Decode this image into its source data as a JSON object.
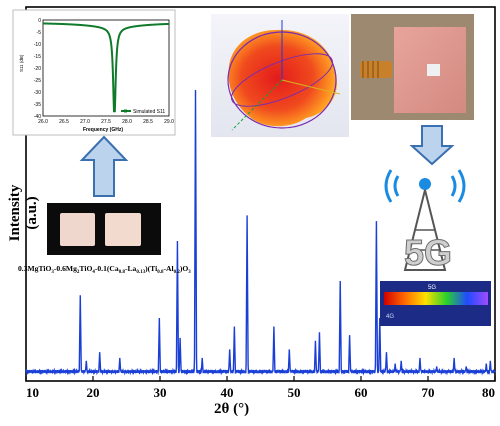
{
  "chart_data": {
    "type": "line",
    "xlabel": "2θ (°)",
    "ylabel": "Intensity (a.u.)",
    "xlim": [
      10,
      80
    ],
    "xticks": [
      "10",
      "20",
      "30",
      "40",
      "50",
      "60",
      "70",
      "80"
    ],
    "series": [
      {
        "color": "#1a3fd6",
        "baseline": 1.2,
        "peaks": [
          {
            "x": 18.1,
            "y": 28
          },
          {
            "x": 19.0,
            "y": 5
          },
          {
            "x": 21.0,
            "y": 8
          },
          {
            "x": 24.0,
            "y": 6
          },
          {
            "x": 29.9,
            "y": 20
          },
          {
            "x": 32.6,
            "y": 47
          },
          {
            "x": 33.0,
            "y": 13
          },
          {
            "x": 35.3,
            "y": 100
          },
          {
            "x": 36.3,
            "y": 6
          },
          {
            "x": 40.4,
            "y": 9
          },
          {
            "x": 41.1,
            "y": 17
          },
          {
            "x": 43.0,
            "y": 56
          },
          {
            "x": 47.0,
            "y": 17
          },
          {
            "x": 49.3,
            "y": 9
          },
          {
            "x": 53.2,
            "y": 12
          },
          {
            "x": 53.8,
            "y": 15
          },
          {
            "x": 56.9,
            "y": 33
          },
          {
            "x": 58.3,
            "y": 14
          },
          {
            "x": 62.3,
            "y": 54
          },
          {
            "x": 62.8,
            "y": 20
          },
          {
            "x": 63.8,
            "y": 8
          },
          {
            "x": 65.1,
            "y": 4
          },
          {
            "x": 66.0,
            "y": 5
          },
          {
            "x": 68.8,
            "y": 6
          },
          {
            "x": 71.3,
            "y": 3
          },
          {
            "x": 73.9,
            "y": 6
          },
          {
            "x": 75.7,
            "y": 3
          },
          {
            "x": 78.7,
            "y": 4
          },
          {
            "x": 79.3,
            "y": 5
          }
        ]
      }
    ]
  },
  "insets": {
    "s11": {
      "ylabel": "S11 (dB)",
      "xlabel": "Frequency (GHz)",
      "xticks": [
        "26.0",
        "26.5",
        "27.0",
        "27.5",
        "28.0",
        "28.5",
        "29.0"
      ],
      "yticks": [
        "0",
        "-5",
        "-10",
        "-15",
        "-20",
        "-25",
        "-30",
        "-35",
        "-40"
      ],
      "legend": "Simulated S11",
      "color": "#0f7a2a",
      "xlim": [
        26.0,
        29.0
      ],
      "ylim": [
        -40,
        0
      ],
      "resonance_ghz": 27.7,
      "min_db": -38
    },
    "sample_caption": "0.3MgTiO3-0.6Mg2TiO4-0.1(Ca0.8-La0.13)(Ti0.8-Al0.2)O3",
    "sample_caption_parts": {
      "prefix": "0.3MgTiO",
      "s1": "3",
      "mid1": "-0.6Mg",
      "s2": "2",
      "mid2": "TiO",
      "s3": "4",
      "mid3": "-0.1(Ca",
      "s4": "0.8",
      "mid4": "-La",
      "s5": "0.13",
      "mid5": ")(Ti",
      "s6": "0.8",
      "mid6": "-Al",
      "s7": "0.2",
      "mid7": ")O",
      "s8": "3"
    },
    "fiveg_label": "5G",
    "colorbar_top_label": "5G",
    "colorbar_bottom_label": "4G"
  }
}
